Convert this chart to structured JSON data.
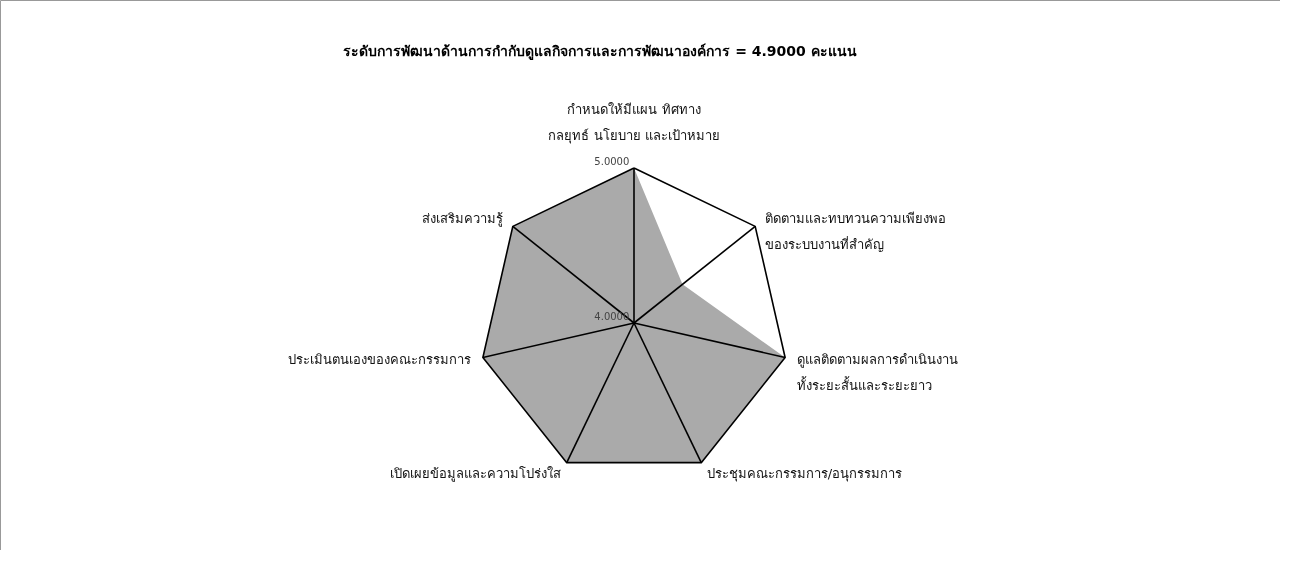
{
  "chart_data": {
    "type": "radar",
    "title": "ระดับการพัฒนาด้านการกำกับดูแลกิจการและการพัฒนาองค์การ = 4.9000 คะแนน",
    "categories": [
      "กำหนดให้มีแผน ทิศทาง\nกลยุทธ์ นโยบาย และเป้าหมาย",
      "ติดตามและทบทวนความเพียงพอ\nของระบบงานที่สำคัญ",
      "ดูแลติดตามผลการดำเนินงาน\nทั้งระยะสั้นและระยะยาว",
      "ประชุมคณะกรรมการ/อนุกรรมการ",
      "เปิดเผยข้อมูลและความโปร่งใส",
      "ประเมินตนเองของคณะกรรมการ",
      "ส่งเสริมความรู้"
    ],
    "series": [
      {
        "color": "#aaaaaa",
        "values": [
          5.0,
          4.4,
          5.0,
          5.0,
          5.0,
          5.0,
          5.0
        ]
      }
    ],
    "ylim": [
      4,
      5
    ],
    "yticks": [
      {
        "value": 4,
        "label": "4.0000"
      },
      {
        "value": 5,
        "label": "5.0000"
      }
    ],
    "grid": true
  }
}
